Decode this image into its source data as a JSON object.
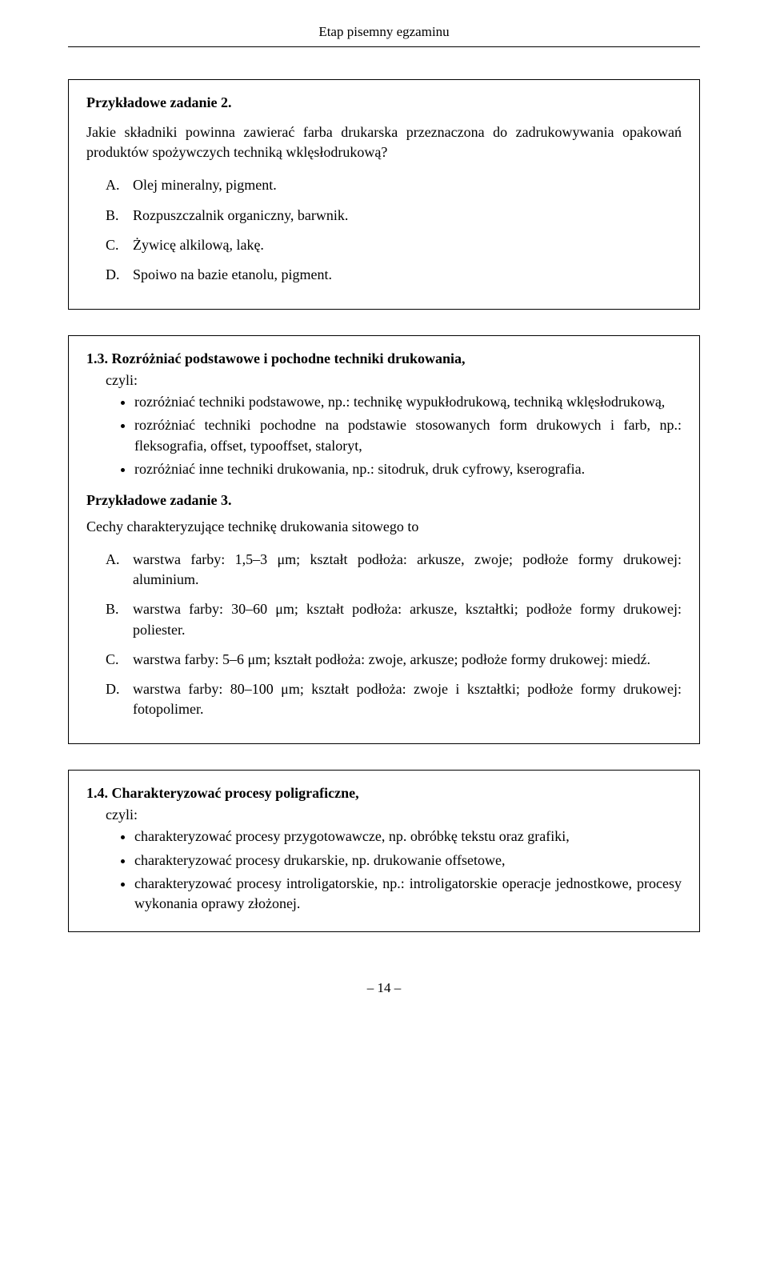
{
  "header": "Etap pisemny egzaminu",
  "box1": {
    "task_title": "Przykładowe zadanie 2.",
    "question": "Jakie składniki powinna zawierać farba drukarska przeznaczona do zadrukowywania opakowań produktów spożywczych techniką wklęsłodrukową?",
    "options": [
      {
        "letter": "A.",
        "text": "Olej mineralny, pigment."
      },
      {
        "letter": "B.",
        "text": "Rozpuszczalnik organiczny, barwnik."
      },
      {
        "letter": "C.",
        "text": "Żywicę alkilową, lakę."
      },
      {
        "letter": "D.",
        "text": "Spoiwo na bazie etanolu, pigment."
      }
    ]
  },
  "box2": {
    "section_num": "1.3.",
    "section_title": "Rozróżniać podstawowe i pochodne techniki drukowania,",
    "czyli": "czyli:",
    "bullets": [
      "rozróżniać techniki podstawowe, np.: technikę wypukłodrukową, techniką wklęsłodrukową,",
      "rozróżniać techniki pochodne na podstawie stosowanych form drukowych i farb, np.: fleksografia, offset, typooffset, staloryt,",
      "rozróżniać inne techniki drukowania, np.: sitodruk, druk cyfrowy, kserografia."
    ],
    "task_title": "Przykładowe zadanie 3.",
    "question": "Cechy charakteryzujące technikę drukowania sitowego to",
    "options": [
      {
        "letter": "A.",
        "text": "warstwa farby: 1,5–3 μm; kształt podłoża: arkusze, zwoje; podłoże formy drukowej: aluminium."
      },
      {
        "letter": "B.",
        "text": "warstwa farby: 30–60 μm; kształt podłoża: arkusze, kształtki; podłoże formy drukowej: poliester."
      },
      {
        "letter": "C.",
        "text": "warstwa farby: 5–6 μm; kształt podłoża: zwoje, arkusze; podłoże formy drukowej: miedź."
      },
      {
        "letter": "D.",
        "text": "warstwa farby: 80–100 μm; kształt podłoża: zwoje i kształtki; podłoże formy drukowej: fotopolimer."
      }
    ]
  },
  "box3": {
    "section_num": "1.4.",
    "section_title": "Charakteryzować procesy poligraficzne,",
    "czyli": "czyli:",
    "bullets": [
      "charakteryzować procesy przygotowawcze, np. obróbkę tekstu oraz grafiki,",
      "charakteryzować procesy drukarskie, np. drukowanie offsetowe,",
      "charakteryzować procesy introligatorskie, np.: introligatorskie operacje jednostkowe, procesy wykonania oprawy złożonej."
    ]
  },
  "footer": "– 14 –"
}
